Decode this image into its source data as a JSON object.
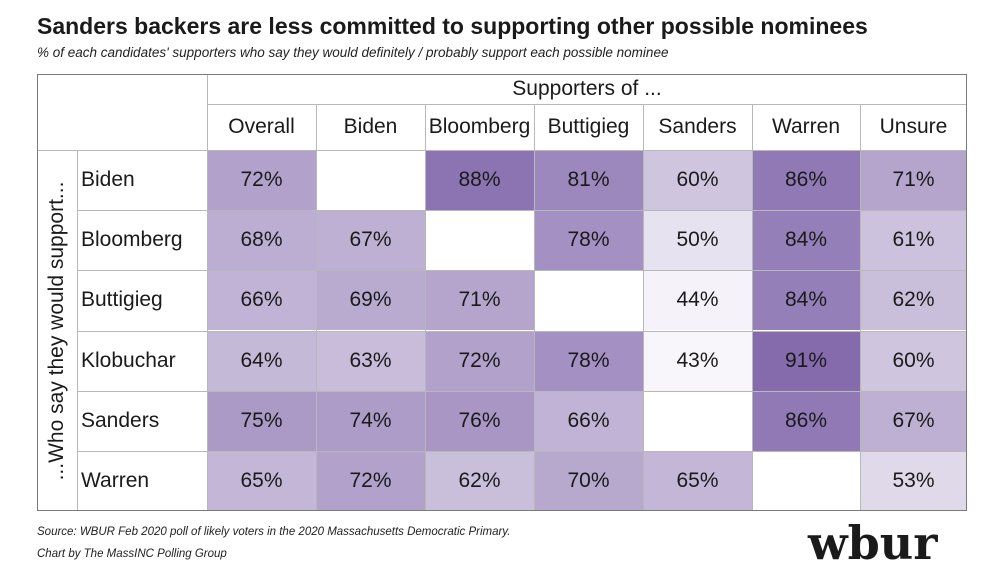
{
  "title": "Sanders backers are less committed to supporting other possible nominees",
  "subtitle": "% of each candidates' supporters who say they would definitely / probably support each possible nominee",
  "chart_data": {
    "type": "heatmap",
    "column_group_label": "Supporters of ...",
    "row_group_label": "...Who say they would support...",
    "columns": [
      "Overall",
      "Biden",
      "Bloomberg",
      "Buttigieg",
      "Sanders",
      "Warren",
      "Unsure"
    ],
    "rows": [
      "Biden",
      "Bloomberg",
      "Buttigieg",
      "Klobuchar",
      "Sanders",
      "Warren"
    ],
    "values": [
      [
        72,
        null,
        88,
        81,
        60,
        86,
        71
      ],
      [
        68,
        67,
        null,
        78,
        50,
        84,
        61
      ],
      [
        66,
        69,
        71,
        null,
        44,
        84,
        62
      ],
      [
        64,
        63,
        72,
        78,
        43,
        91,
        60
      ],
      [
        75,
        74,
        76,
        66,
        null,
        86,
        67
      ],
      [
        65,
        72,
        62,
        70,
        65,
        null,
        53
      ]
    ],
    "value_suffix": "%",
    "color_low": "#ffffff",
    "color_high": "#7b5fa6"
  },
  "footer": {
    "source": "Source: WBUR Feb 2020 poll of likely voters in the 2020 Massachusetts Democratic Primary.",
    "credit": "Chart by The MassINC Polling Group"
  },
  "logo": "wbur"
}
